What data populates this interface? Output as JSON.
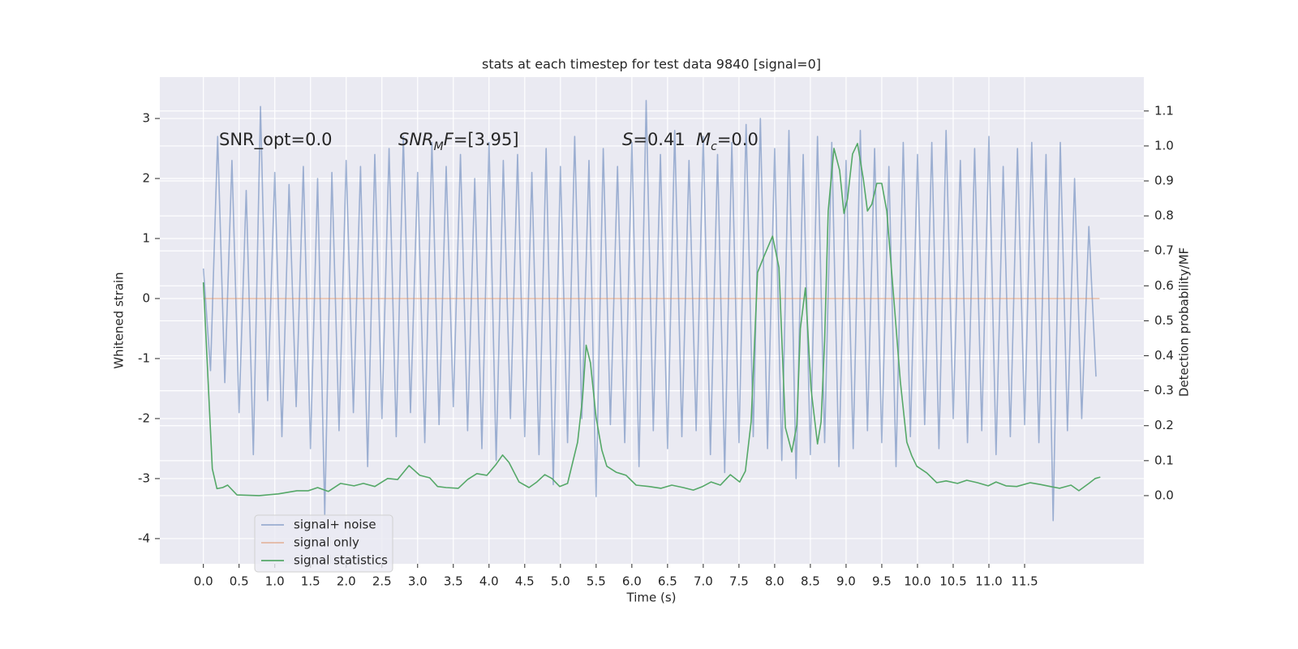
{
  "chart_data": {
    "type": "line",
    "title": "stats at each timestep for test data 9840 [signal=0]",
    "xlabel": "Time (s)",
    "ylabel": "Whitened strain",
    "y2label": "Detection probability/MF",
    "xlim": [
      -0.61,
      13.17
    ],
    "ylim": [
      -4.42,
      3.69
    ],
    "y2lim": [
      -0.195,
      1.197
    ],
    "xticks": [
      {
        "value": 0,
        "label": "0.0"
      },
      0.5,
      {
        "value": 1,
        "label": "1.0"
      },
      1.5,
      {
        "value": 2,
        "label": "2.0"
      },
      2.5,
      {
        "value": 3,
        "label": "3.0"
      },
      3.5,
      {
        "value": 4,
        "label": "4.0"
      },
      4.5,
      {
        "value": 5,
        "label": "5.0"
      },
      5.5,
      {
        "value": 6,
        "label": "6.0"
      },
      6.5,
      {
        "value": 7,
        "label": "7.0"
      },
      7.5,
      {
        "value": 8,
        "label": "8.0"
      },
      8.5,
      {
        "value": 9,
        "label": "9.0"
      },
      9.5,
      {
        "value": 10,
        "label": "10.0"
      },
      10.5,
      {
        "value": 11,
        "label": "11.0"
      },
      11.5
    ],
    "yticks": [
      -4,
      -3,
      -2,
      -1,
      0,
      1,
      2,
      3
    ],
    "y2ticks": [
      {
        "value": 0,
        "label": "0.0"
      },
      0.1,
      0.2,
      0.3,
      0.4,
      0.5,
      0.6,
      0.7,
      0.8,
      0.9,
      {
        "value": 1,
        "label": "1.0"
      },
      1.1
    ],
    "grid": true,
    "legend_loc": "lower left",
    "annotations": [
      [
        {
          "text": "SNR_opt=0.0"
        }
      ],
      [
        {
          "text": "SNR",
          "italic": true
        },
        {
          "text": "M",
          "italic": true,
          "sub": true
        },
        {
          "text": "F",
          "italic": true
        },
        {
          "text": "=[3.95]"
        }
      ],
      [
        {
          "text": "S",
          "italic": true
        },
        {
          "text": "=0.41"
        }
      ],
      [
        {
          "text": "M",
          "italic": true
        },
        {
          "text": "c",
          "italic": true,
          "sub": true
        },
        {
          "text": "=0.0"
        }
      ]
    ],
    "series": [
      {
        "name": "signal+ noise",
        "color": "#4c72b0",
        "alpha": 0.5,
        "x": [
          0,
          0.1,
          0.2,
          0.3,
          0.4,
          0.5,
          0.6,
          0.7,
          0.8,
          0.9,
          1,
          1.1,
          1.2,
          1.3,
          1.4,
          1.5,
          1.6,
          1.7,
          1.8,
          1.9,
          2,
          2.1,
          2.2,
          2.3,
          2.4,
          2.5,
          2.6,
          2.7,
          2.8,
          2.9,
          3,
          3.1,
          3.2,
          3.3,
          3.4,
          3.5,
          3.6,
          3.7,
          3.8,
          3.9,
          4,
          4.1,
          4.2,
          4.3,
          4.4,
          4.5,
          4.6,
          4.7,
          4.8,
          4.9,
          5,
          5.1,
          5.2,
          5.3,
          5.4,
          5.5,
          5.6,
          5.7,
          5.8,
          5.9,
          6,
          6.1,
          6.2,
          6.3,
          6.4,
          6.5,
          6.6,
          6.7,
          6.8,
          6.9,
          7,
          7.1,
          7.2,
          7.3,
          7.4,
          7.5,
          7.6,
          7.7,
          7.8,
          7.9,
          8,
          8.1,
          8.2,
          8.3,
          8.4,
          8.5,
          8.6,
          8.7,
          8.8,
          8.9,
          9,
          9.1,
          9.2,
          9.3,
          9.4,
          9.5,
          9.6,
          9.7,
          9.8,
          9.9,
          10,
          10.1,
          10.2,
          10.3,
          10.4,
          10.5,
          10.6,
          10.7,
          10.8,
          10.9,
          11,
          11.1,
          11.2,
          11.3,
          11.4,
          11.5,
          11.6,
          11.7,
          11.8,
          11.9,
          12,
          12.1,
          12.2,
          12.3,
          12.4,
          12.5
        ],
        "values": [
          0.5,
          -1.2,
          2.7,
          -1.4,
          2.3,
          -1.9,
          1.8,
          -2.6,
          3.2,
          -1.7,
          2.1,
          -2.3,
          1.9,
          -1.8,
          2.2,
          -2.5,
          2.0,
          -3.6,
          2.1,
          -2.2,
          2.3,
          -1.9,
          2.2,
          -2.8,
          2.4,
          -2.0,
          2.5,
          -2.3,
          2.7,
          -1.9,
          2.1,
          -2.4,
          2.6,
          -2.1,
          2.2,
          -1.8,
          2.4,
          -2.2,
          2.0,
          -2.5,
          2.6,
          -2.7,
          2.3,
          -2.0,
          2.4,
          -2.3,
          2.1,
          -2.6,
          2.5,
          -3.1,
          2.2,
          -2.4,
          2.7,
          -2.0,
          2.3,
          -3.3,
          2.5,
          -2.1,
          2.2,
          -2.4,
          2.6,
          -2.8,
          3.3,
          -2.2,
          2.4,
          -2.5,
          2.8,
          -2.3,
          2.3,
          -2.2,
          2.7,
          -2.6,
          2.4,
          -2.9,
          2.6,
          -2.4,
          2.9,
          -2.3,
          3.0,
          -2.5,
          2.5,
          -2.7,
          2.8,
          -3.0,
          2.4,
          -2.6,
          2.7,
          -2.4,
          2.6,
          -2.8,
          2.3,
          -2.5,
          2.8,
          -2.2,
          2.5,
          -2.4,
          2.2,
          -2.8,
          2.6,
          -2.3,
          2.4,
          -2.1,
          2.6,
          -2.5,
          2.8,
          -2.0,
          2.3,
          -2.4,
          2.5,
          -2.2,
          2.7,
          -2.6,
          2.2,
          -2.3,
          2.5,
          -2.1,
          2.6,
          -2.4,
          2.4,
          -3.7,
          2.6,
          -2.2,
          2.0,
          -2.0,
          1.2,
          -1.3
        ]
      },
      {
        "name": "signal only",
        "color": "#dd8452",
        "alpha": 0.5,
        "x": [
          0,
          12.55
        ],
        "values": [
          0,
          0
        ]
      },
      {
        "name": "signal statistics",
        "color": "#55a868",
        "axis": "y2",
        "x": [
          0,
          0.125,
          0.19,
          0.27,
          0.34,
          0.47,
          0.78,
          1.05,
          1.31,
          1.47,
          1.6,
          1.75,
          1.92,
          2.11,
          2.24,
          2.4,
          2.58,
          2.72,
          2.88,
          3.03,
          3.17,
          3.28,
          3.4,
          3.57,
          3.7,
          3.83,
          3.97,
          4.1,
          4.19,
          4.28,
          4.42,
          4.56,
          4.67,
          4.78,
          4.88,
          4.99,
          5.1,
          5.24,
          5.31,
          5.36,
          5.42,
          5.5,
          5.58,
          5.65,
          5.78,
          5.92,
          6.06,
          6.24,
          6.41,
          6.56,
          6.72,
          6.86,
          6.99,
          7.11,
          7.24,
          7.38,
          7.51,
          7.59,
          7.67,
          7.76,
          7.85,
          7.97,
          8.06,
          8.15,
          8.24,
          8.31,
          8.36,
          8.43,
          8.51,
          8.6,
          8.65,
          8.7,
          8.75,
          8.83,
          8.91,
          8.97,
          9.02,
          9.09,
          9.16,
          9.24,
          9.3,
          9.36,
          9.43,
          9.5,
          9.57,
          9.67,
          9.76,
          9.85,
          9.92,
          9.99,
          10.13,
          10.27,
          10.4,
          10.56,
          10.69,
          10.84,
          10.99,
          11.1,
          11.24,
          11.39,
          11.58,
          11.72,
          11.86,
          11.99,
          12.15,
          12.26,
          12.4,
          12.49,
          12.56
        ],
        "values": [
          0.61,
          0.077,
          0.02,
          0.023,
          0.03,
          0.002,
          0,
          0.005,
          0.014,
          0.014,
          0.023,
          0.012,
          0.035,
          0.028,
          0.035,
          0.026,
          0.049,
          0.046,
          0.086,
          0.058,
          0.051,
          0.026,
          0.023,
          0.021,
          0.046,
          0.063,
          0.058,
          0.09,
          0.116,
          0.095,
          0.039,
          0.023,
          0.039,
          0.06,
          0.049,
          0.026,
          0.035,
          0.153,
          0.28,
          0.43,
          0.38,
          0.223,
          0.13,
          0.084,
          0.067,
          0.058,
          0.03,
          0.026,
          0.021,
          0.03,
          0.023,
          0.016,
          0.026,
          0.039,
          0.03,
          0.06,
          0.039,
          0.07,
          0.211,
          0.638,
          0.684,
          0.742,
          0.652,
          0.195,
          0.125,
          0.202,
          0.478,
          0.594,
          0.304,
          0.148,
          0.211,
          0.443,
          0.814,
          0.993,
          0.93,
          0.807,
          0.849,
          0.977,
          1.007,
          0.907,
          0.814,
          0.833,
          0.893,
          0.893,
          0.814,
          0.559,
          0.327,
          0.153,
          0.114,
          0.084,
          0.065,
          0.037,
          0.042,
          0.035,
          0.044,
          0.037,
          0.028,
          0.039,
          0.028,
          0.026,
          0.037,
          0.032,
          0.026,
          0.021,
          0.03,
          0.014,
          0.035,
          0.049,
          0.053
        ]
      }
    ]
  }
}
